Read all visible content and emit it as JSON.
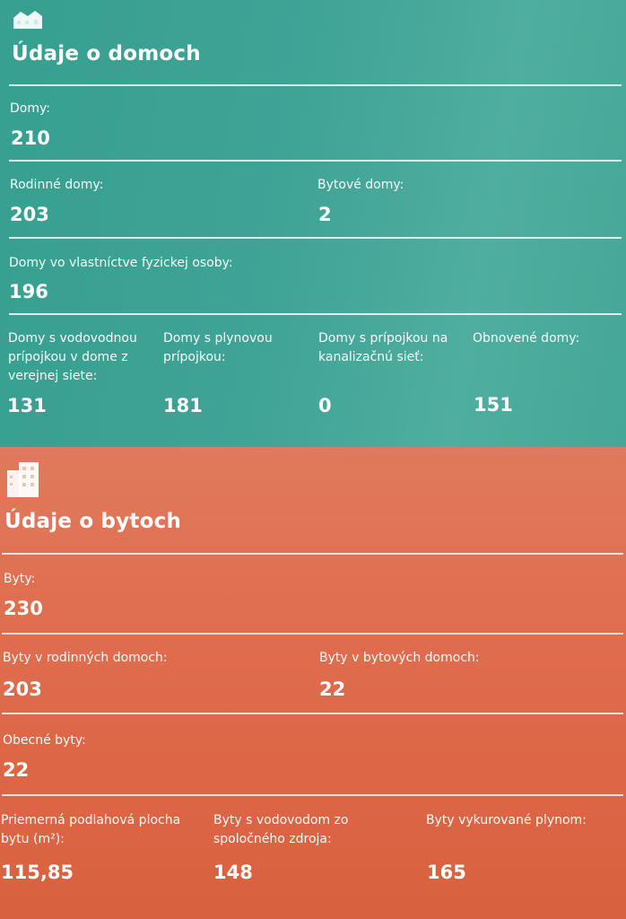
{
  "houses": {
    "icon": "house-icon",
    "title": "Údaje o domoch",
    "total": {
      "label": "Domy:",
      "value": "210"
    },
    "family": {
      "label": "Rodinné domy:",
      "value": "203"
    },
    "apartment_buildings": {
      "label": "Bytové domy:",
      "value": "2"
    },
    "private_owned": {
      "label": "Domy vo vlastníctve fyzickej osoby:",
      "value": "196"
    },
    "water": {
      "label": "Domy s vodovodnou prípojkou v dome z verejnej siete:",
      "value": "131"
    },
    "gas": {
      "label": "Domy s plynovou prípojkou:",
      "value": "181"
    },
    "sewer": {
      "label": "Domy s prípojkou na kanalizačnú sieť:",
      "value": "0"
    },
    "renovated": {
      "label": "Obnovené domy:",
      "value": "151"
    }
  },
  "flats": {
    "icon": "apartment-building-icon",
    "title": "Údaje o bytoch",
    "total": {
      "label": "Byty:",
      "value": "230"
    },
    "in_family_houses": {
      "label": "Byty v rodinných domoch:",
      "value": "203"
    },
    "in_apartment_buildings": {
      "label": "Byty v bytových domoch:",
      "value": "22"
    },
    "municipal": {
      "label": "Obecné byty:",
      "value": "22"
    },
    "avg_floor_area": {
      "label": "Priemerná podlahová plocha bytu (m²):",
      "value": "115,85"
    },
    "water_shared": {
      "label": "Byty s vodovodom zo spoločného zdroja:",
      "value": "148"
    },
    "gas_heated": {
      "label": "Byty vykurované plynom:",
      "value": "165"
    }
  },
  "colors": {
    "houses_bg": "#3fa396",
    "flats_bg": "#e06e50",
    "text": "#ffffff"
  }
}
